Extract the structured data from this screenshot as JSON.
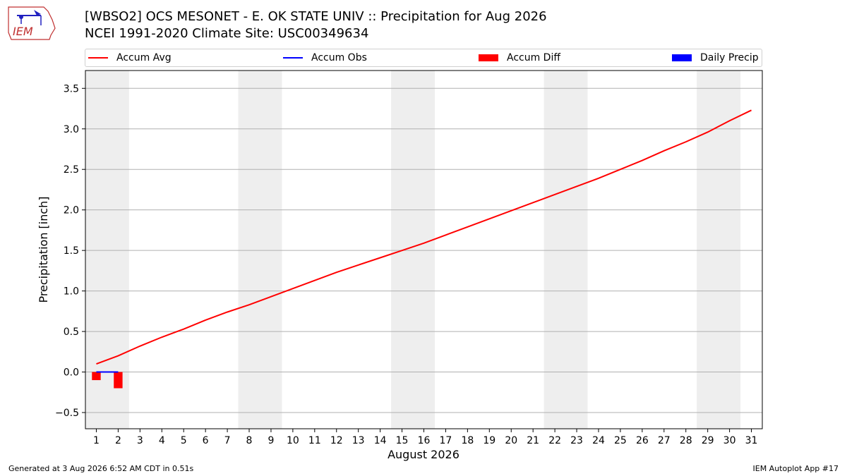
{
  "logo": {
    "text": "IEM"
  },
  "title": {
    "line1": "[WBSO2] OCS MESONET - E. OK STATE UNIV :: Precipitation for Aug 2026",
    "line2": "NCEI 1991-2020 Climate Site: USC00349634"
  },
  "legend": {
    "accum_avg": "Accum Avg",
    "accum_obs": "Accum Obs",
    "accum_diff": "Accum Diff",
    "daily_precip": "Daily Precip"
  },
  "colors": {
    "accum_avg": "#ff0000",
    "accum_obs": "#0000ff",
    "accum_diff": "#ff0000",
    "daily_precip": "#0000ff",
    "weekend_shade": "#eeeeee",
    "grid": "#b0b0b0"
  },
  "footer": {
    "left": "Generated at 3 Aug 2026 6:52 AM CDT in 0.51s",
    "right": "IEM Autoplot App #17"
  },
  "chart_data": {
    "type": "line",
    "xlabel": "August 2026",
    "ylabel": "Precipitation [inch]",
    "x": [
      1,
      2,
      3,
      4,
      5,
      6,
      7,
      8,
      9,
      10,
      11,
      12,
      13,
      14,
      15,
      16,
      17,
      18,
      19,
      20,
      21,
      22,
      23,
      24,
      25,
      26,
      27,
      28,
      29,
      30,
      31
    ],
    "xlim": [
      0.5,
      31.5
    ],
    "ylim": [
      -0.7,
      3.72
    ],
    "yticks": [
      -0.5,
      0.0,
      0.5,
      1.0,
      1.5,
      2.0,
      2.5,
      3.0,
      3.5
    ],
    "ytick_labels": [
      "−0.5",
      "0.0",
      "0.5",
      "1.0",
      "1.5",
      "2.0",
      "2.5",
      "3.0",
      "3.5"
    ],
    "grid": true,
    "weekend_shading": [
      [
        0.5,
        2.5
      ],
      [
        7.5,
        9.5
      ],
      [
        14.5,
        16.5
      ],
      [
        21.5,
        23.5
      ],
      [
        28.5,
        30.5
      ]
    ],
    "series": [
      {
        "name": "Accum Avg",
        "type": "line",
        "x": [
          1,
          2,
          3,
          4,
          5,
          6,
          7,
          8,
          9,
          10,
          11,
          12,
          13,
          14,
          15,
          16,
          17,
          18,
          19,
          20,
          21,
          22,
          23,
          24,
          25,
          26,
          27,
          28,
          29,
          30,
          31
        ],
        "values": [
          0.1,
          0.2,
          0.32,
          0.43,
          0.53,
          0.64,
          0.74,
          0.83,
          0.93,
          1.03,
          1.13,
          1.23,
          1.32,
          1.41,
          1.5,
          1.59,
          1.69,
          1.79,
          1.89,
          1.99,
          2.09,
          2.19,
          2.29,
          2.39,
          2.5,
          2.61,
          2.73,
          2.84,
          2.96,
          3.1,
          3.23
        ]
      },
      {
        "name": "Accum Obs",
        "type": "line",
        "x": [
          1,
          2
        ],
        "values": [
          0.0,
          0.0
        ]
      },
      {
        "name": "Accum Diff",
        "type": "bar",
        "x": [
          1,
          2
        ],
        "values": [
          -0.1,
          -0.2
        ]
      },
      {
        "name": "Daily Precip",
        "type": "bar",
        "x": [
          1,
          2
        ],
        "values": [
          0.0,
          0.0
        ]
      }
    ]
  }
}
